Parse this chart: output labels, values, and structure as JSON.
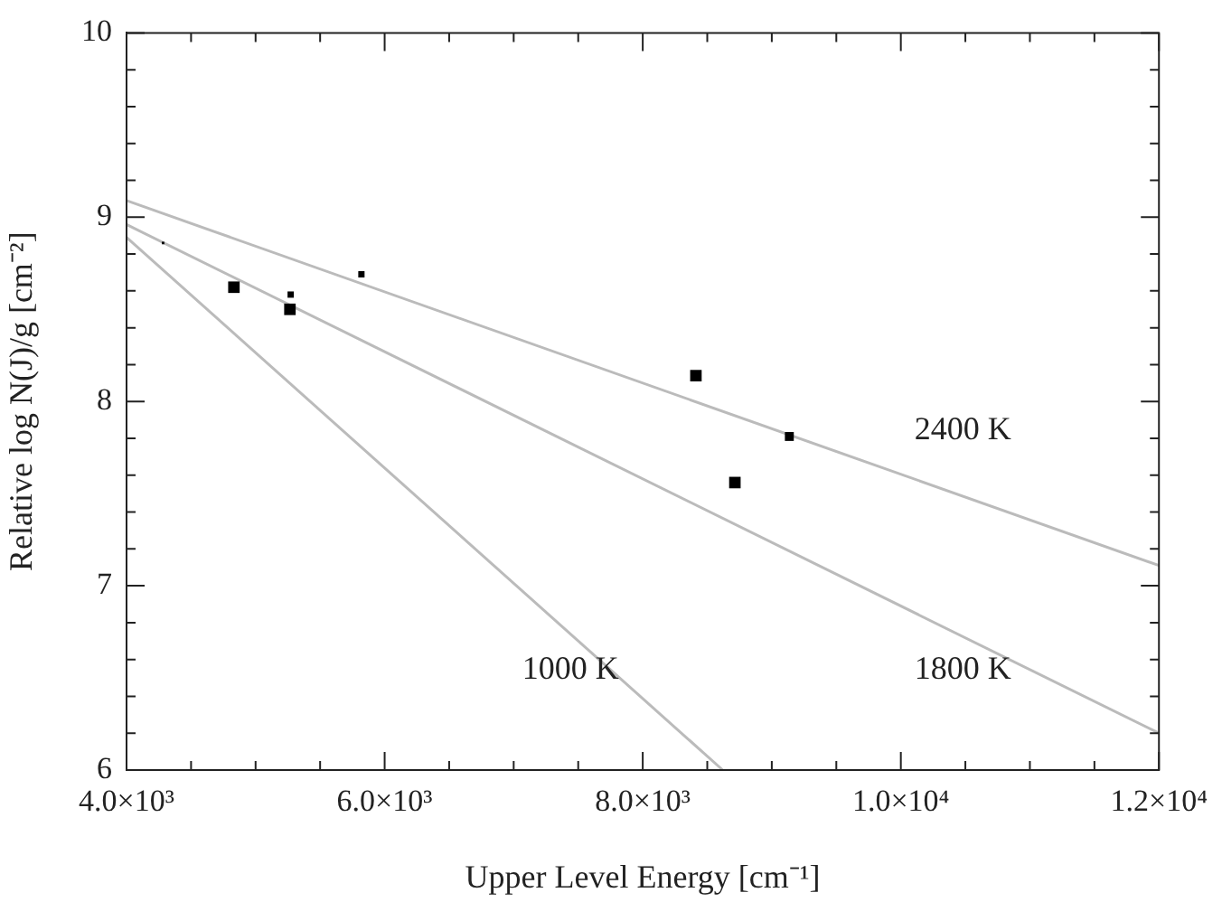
{
  "chart_data": {
    "type": "bubble",
    "xlabel": "Upper Level Energy [cm⁻¹]",
    "ylabel": "Relative log N(J)/g [cm⁻²]",
    "xlim": [
      4000,
      12000
    ],
    "ylim": [
      6,
      10
    ],
    "xticks": [
      {
        "value": 4000,
        "label": "4.0×10³"
      },
      {
        "value": 4500,
        "label": null
      },
      {
        "value": 5000,
        "label": null
      },
      {
        "value": 5500,
        "label": null
      },
      {
        "value": 6000,
        "label": "6.0×10³"
      },
      {
        "value": 6500,
        "label": null
      },
      {
        "value": 7000,
        "label": null
      },
      {
        "value": 7500,
        "label": null
      },
      {
        "value": 8000,
        "label": "8.0×10³"
      },
      {
        "value": 8500,
        "label": null
      },
      {
        "value": 9000,
        "label": null
      },
      {
        "value": 9500,
        "label": null
      },
      {
        "value": 10000,
        "label": "1.0×10⁴"
      },
      {
        "value": 10500,
        "label": null
      },
      {
        "value": 11000,
        "label": null
      },
      {
        "value": 11500,
        "label": null
      },
      {
        "value": 12000,
        "label": "1.2×10⁴"
      }
    ],
    "yticks": [
      6,
      {
        "value": 6.2,
        "label": null
      },
      {
        "value": 6.4,
        "label": null
      },
      {
        "value": 6.6,
        "label": null
      },
      {
        "value": 6.8,
        "label": null
      },
      7,
      {
        "value": 7.2,
        "label": null
      },
      {
        "value": 7.4,
        "label": null
      },
      {
        "value": 7.6,
        "label": null
      },
      {
        "value": 7.8,
        "label": null
      },
      8,
      {
        "value": 8.2,
        "label": null
      },
      {
        "value": 8.4,
        "label": null
      },
      {
        "value": 8.6,
        "label": null
      },
      {
        "value": 8.8,
        "label": null
      },
      9,
      {
        "value": 9.2,
        "label": null
      },
      {
        "value": 9.4,
        "label": null
      },
      {
        "value": 9.6,
        "label": null
      },
      {
        "value": 9.8,
        "label": null
      },
      10
    ],
    "series": [
      {
        "type": "bubble",
        "marker": "square",
        "color": "#000000",
        "x": [
          4283,
          4832,
          5266,
          5272,
          5820,
          8412,
          8714,
          9136
        ],
        "values": [
          8.86,
          8.62,
          8.5,
          8.58,
          8.69,
          8.14,
          7.56,
          7.81
        ],
        "sizes": [
          0.05,
          1,
          1,
          0.3,
          0.3,
          1,
          1,
          0.6
        ]
      },
      {
        "type": "line",
        "name": "2400 K",
        "line_style": "solid",
        "color": "#bbbbbb",
        "x": [
          4000,
          12000
        ],
        "values": [
          9.09,
          7.11
        ]
      },
      {
        "type": "line",
        "name": "1800 K",
        "line_style": "solid",
        "color": "#bbbbbb",
        "x": [
          4000,
          12000
        ],
        "values": [
          8.96,
          6.2
        ]
      },
      {
        "type": "line",
        "name": "1000 K",
        "line_style": "solid",
        "color": "#bbbbbb",
        "x": [
          4000,
          8620
        ],
        "values": [
          8.89,
          6
        ]
      }
    ],
    "grid": false,
    "legend": false
  }
}
